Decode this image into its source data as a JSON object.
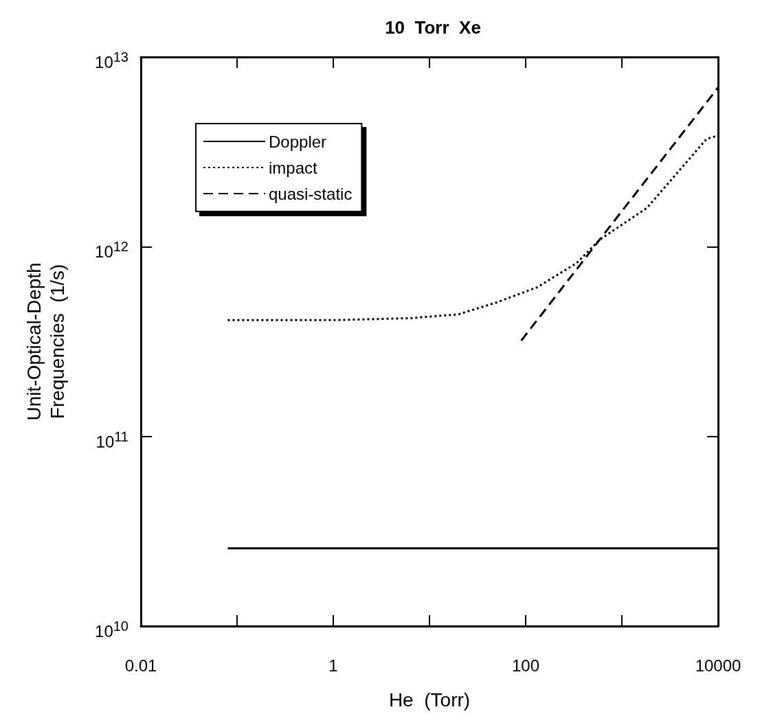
{
  "chart_data": {
    "type": "line",
    "title": "10  Torr  Xe",
    "xlabel": "He  (Torr)",
    "ylabel": "Unit-Optical-Depth\nFrequencies  (1/s)",
    "log": "xy",
    "xlim": [
      0.01,
      10000
    ],
    "ylim": [
      10000000000.0,
      10000000000000.0
    ],
    "xticks": [
      0.01,
      {
        "value": 0.1,
        "label": null
      },
      1,
      {
        "value": 10,
        "label": null
      },
      100,
      {
        "value": 1000,
        "label": null
      },
      10000
    ],
    "yticks": [
      {
        "value": 10000000000.0,
        "label": "10$^{10}$"
      },
      {
        "value": 100000000000.0,
        "label": "10$^{11}$"
      },
      {
        "value": 1000000000000.0,
        "label": "10$^{12}$"
      },
      {
        "value": 10000000000000.0,
        "label": "10$^{13}$"
      }
    ],
    "legend": "top left",
    "grid": false,
    "marker": "none",
    "series": [
      {
        "name": "Doppler",
        "color": "#000000",
        "line_style": "solid",
        "x": [
          0.08,
          10000
        ],
        "values": [
          25700000000.0,
          25700000000.0
        ]
      },
      {
        "name": "impact",
        "color": "#000000",
        "line_style": "dotted",
        "x": [
          0.08,
          1,
          6.4,
          20,
          51,
          100,
          131,
          339,
          590,
          1820,
          7600,
          10000
        ],
        "values": [
          410000000000.0,
          410000000000.0,
          420000000000.0,
          440000000000.0,
          510000000000.0,
          580000000000.0,
          610000000000.0,
          820000000000.0,
          1090000000000.0,
          1600000000000.0,
          3700000000000.0,
          3850000000000.0
        ]
      },
      {
        "name": "quasi-static",
        "color": "#000000",
        "line_style": "dashed",
        "x": [
          90,
          500,
          10000
        ],
        "values": [
          320000000000.0,
          980000000000.0,
          6900000000000.0
        ]
      }
    ]
  }
}
